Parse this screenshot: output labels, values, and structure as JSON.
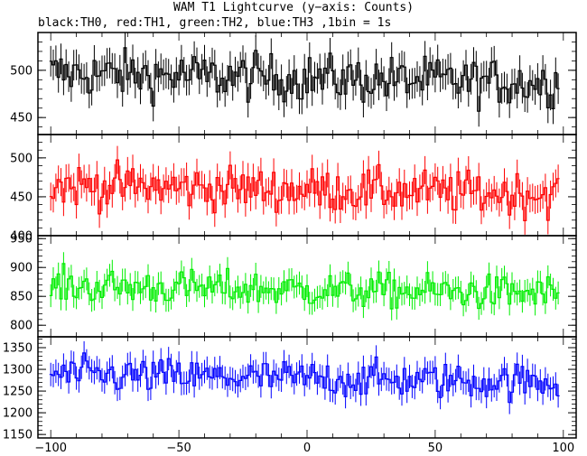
{
  "title": "WAM T1 Lightcurve (y−axis: Counts)",
  "subtitle": "black:TH0, red:TH1, green:TH2, blue:TH3 ,1bin = 1s",
  "chart_data": {
    "type": "line",
    "style": "step with error bars",
    "x_range": [
      -105,
      105
    ],
    "x_ticks": [
      -100,
      -50,
      0,
      50,
      100
    ],
    "x_tick_labels": [
      "−100",
      "−50",
      "0",
      "50",
      "100"
    ],
    "x_data_range": [
      -100,
      98
    ],
    "bin_size": 1,
    "panels": [
      {
        "series": "TH0",
        "color": "#000000",
        "ylim": [
          432,
          540
        ],
        "yticks": [
          450,
          500
        ],
        "ytick_labels": [
          "450",
          "500"
        ],
        "mean": 489,
        "amplitude": 18
      },
      {
        "series": "TH1",
        "color": "#ff0000",
        "ylim": [
          400,
          530
        ],
        "yticks": [
          400,
          450,
          500
        ],
        "ytick_labels": [
          "400",
          "450",
          "500"
        ],
        "mean": 457,
        "amplitude": 20
      },
      {
        "series": "TH2",
        "color": "#00ee00",
        "ylim": [
          780,
          955
        ],
        "yticks": [
          800,
          850,
          900,
          950
        ],
        "ytick_labels": [
          "800",
          "850",
          "900",
          "950"
        ],
        "mean": 860,
        "amplitude": 22
      },
      {
        "series": "TH3",
        "color": "#0000ff",
        "ylim": [
          1142,
          1375
        ],
        "yticks": [
          1150,
          1200,
          1250,
          1300,
          1350
        ],
        "ytick_labels": [
          "1150",
          "1200",
          "1250",
          "1300",
          "1350"
        ],
        "mean": 1280,
        "amplitude": 30
      }
    ]
  }
}
